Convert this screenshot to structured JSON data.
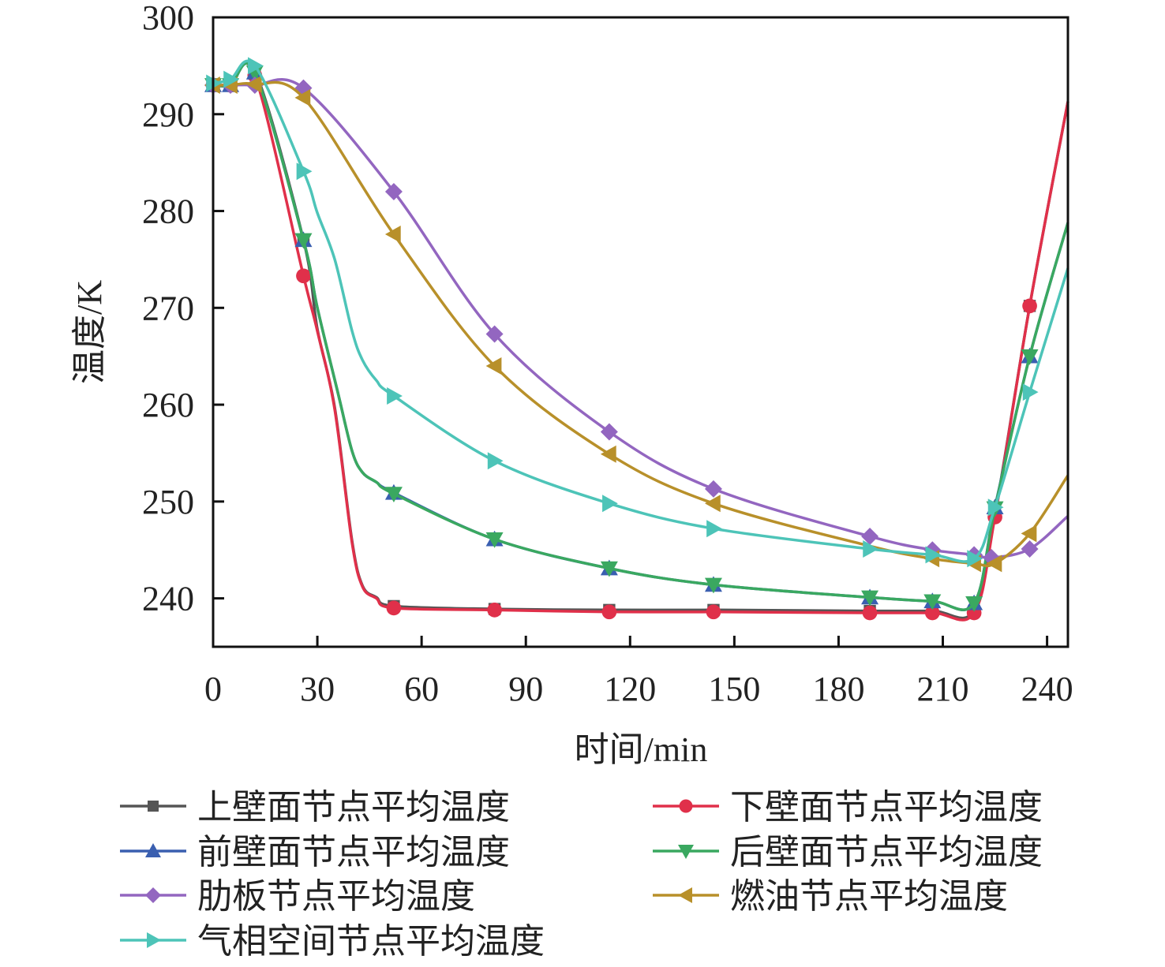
{
  "chart_data": {
    "type": "line",
    "title": "",
    "xlabel": "时间/min",
    "ylabel": "温度/K",
    "xlim": [
      0,
      246
    ],
    "ylim": [
      235,
      300
    ],
    "xticks": [
      0,
      30,
      60,
      90,
      120,
      150,
      180,
      210,
      240
    ],
    "yticks": [
      240,
      250,
      260,
      270,
      280,
      290,
      300
    ],
    "grid": false,
    "legend_position": "bottom",
    "series": [
      {
        "name": "上壁面节点平均温度",
        "color": "#555555",
        "marker": "square",
        "points": [
          [
            0,
            293,
            1
          ],
          [
            5,
            293,
            1
          ],
          [
            12,
            294.5,
            1
          ],
          [
            26,
            277,
            1
          ],
          [
            30,
            267.8,
            0
          ],
          [
            35,
            259.7,
            0
          ],
          [
            40,
            245.9,
            0
          ],
          [
            43,
            241.3,
            0
          ],
          [
            47,
            240.1,
            0
          ],
          [
            52,
            239.2,
            1
          ],
          [
            81,
            238.9,
            1
          ],
          [
            114,
            238.8,
            1
          ],
          [
            144,
            238.8,
            1
          ],
          [
            189,
            238.7,
            1
          ],
          [
            207,
            238.7,
            1
          ],
          [
            219,
            238.7,
            1
          ],
          [
            225,
            248.6,
            1
          ],
          [
            235,
            270.2,
            1
          ],
          [
            246,
            291.3,
            0
          ]
        ]
      },
      {
        "name": "下壁面节点平均温度",
        "color": "#e0304a",
        "marker": "circle",
        "points": [
          [
            0,
            293,
            1
          ],
          [
            5,
            293,
            1
          ],
          [
            12,
            294,
            1
          ],
          [
            26,
            273.3,
            1
          ],
          [
            30,
            267.6,
            0
          ],
          [
            35,
            259.5,
            0
          ],
          [
            40,
            245.7,
            0
          ],
          [
            43,
            241.2,
            0
          ],
          [
            47,
            240,
            0
          ],
          [
            52,
            239,
            1
          ],
          [
            81,
            238.8,
            1
          ],
          [
            114,
            238.6,
            1
          ],
          [
            144,
            238.6,
            1
          ],
          [
            189,
            238.5,
            1
          ],
          [
            207,
            238.5,
            1
          ],
          [
            219,
            238.5,
            1
          ],
          [
            225,
            248.4,
            1
          ],
          [
            235,
            270.2,
            1
          ],
          [
            246,
            291.3,
            0
          ]
        ]
      },
      {
        "name": "前壁面节点平均温度",
        "color": "#3a5fb0",
        "marker": "triangle-up",
        "points": [
          [
            0,
            293,
            1
          ],
          [
            5,
            293,
            1
          ],
          [
            12,
            294.3,
            1
          ],
          [
            26,
            277,
            1
          ],
          [
            30,
            270,
            0
          ],
          [
            36,
            261.1,
            0
          ],
          [
            40,
            255.2,
            0
          ],
          [
            43,
            253,
            0
          ],
          [
            47,
            252,
            0
          ],
          [
            52,
            250.9,
            1
          ],
          [
            81,
            246.1,
            1
          ],
          [
            114,
            243.1,
            1
          ],
          [
            144,
            241.4,
            1
          ],
          [
            189,
            240.1,
            1
          ],
          [
            207,
            239.7,
            1
          ],
          [
            219,
            239.5,
            1
          ],
          [
            225,
            249.4,
            1
          ],
          [
            235,
            265,
            1
          ],
          [
            246,
            278.8,
            0
          ]
        ]
      },
      {
        "name": "后壁面节点平均温度",
        "color": "#3aa860",
        "marker": "triangle-down",
        "points": [
          [
            0,
            293,
            1
          ],
          [
            5,
            293,
            1
          ],
          [
            12,
            294.3,
            1
          ],
          [
            26,
            277,
            1
          ],
          [
            30,
            270,
            0
          ],
          [
            36,
            261.1,
            0
          ],
          [
            40,
            255.2,
            0
          ],
          [
            43,
            253,
            0
          ],
          [
            47,
            252,
            0
          ],
          [
            52,
            250.8,
            1
          ],
          [
            81,
            246.1,
            1
          ],
          [
            114,
            243.1,
            1
          ],
          [
            144,
            241.4,
            1
          ],
          [
            189,
            240.1,
            1
          ],
          [
            207,
            239.7,
            1
          ],
          [
            219,
            239.5,
            1
          ],
          [
            225,
            249.3,
            1
          ],
          [
            235,
            265,
            1
          ],
          [
            246,
            278.8,
            0
          ]
        ]
      },
      {
        "name": "肋板节点平均温度",
        "color": "#9366c0",
        "marker": "diamond",
        "points": [
          [
            0,
            293,
            1
          ],
          [
            5,
            293,
            1
          ],
          [
            12,
            293,
            1
          ],
          [
            26,
            292.7,
            1
          ],
          [
            52,
            282,
            1
          ],
          [
            81,
            267.3,
            1
          ],
          [
            114,
            257.2,
            1
          ],
          [
            144,
            251.3,
            1
          ],
          [
            189,
            246.4,
            1
          ],
          [
            207,
            245,
            1
          ],
          [
            219,
            244.5,
            1
          ],
          [
            224,
            244.2,
            1
          ],
          [
            235,
            245.1,
            1
          ],
          [
            246,
            248.5,
            0
          ]
        ]
      },
      {
        "name": "燃油节点平均温度",
        "color": "#b8902a",
        "marker": "triangle-left",
        "points": [
          [
            0,
            293,
            1
          ],
          [
            5,
            293,
            1
          ],
          [
            12,
            293.1,
            1
          ],
          [
            26,
            291.7,
            1
          ],
          [
            52,
            277.6,
            1
          ],
          [
            81,
            264,
            1
          ],
          [
            114,
            254.9,
            1
          ],
          [
            144,
            249.8,
            1
          ],
          [
            189,
            245.4,
            0
          ],
          [
            207,
            244.1,
            1
          ],
          [
            219,
            243.6,
            1
          ],
          [
            225,
            243.6,
            1
          ],
          [
            235,
            246.7,
            1
          ],
          [
            246,
            252.7,
            0
          ]
        ]
      },
      {
        "name": "气相空间节点平均温度",
        "color": "#4dc4b8",
        "marker": "triangle-right",
        "points": [
          [
            0,
            293.2,
            1
          ],
          [
            5,
            293.6,
            1
          ],
          [
            12,
            295,
            1
          ],
          [
            26,
            284.1,
            1
          ],
          [
            30,
            279.8,
            0
          ],
          [
            35,
            275,
            0
          ],
          [
            40,
            267.6,
            0
          ],
          [
            43,
            264.6,
            0
          ],
          [
            47,
            262.5,
            0
          ],
          [
            52,
            260.9,
            1
          ],
          [
            81,
            254.2,
            1
          ],
          [
            114,
            249.8,
            1
          ],
          [
            144,
            247.2,
            1
          ],
          [
            189,
            245.1,
            1
          ],
          [
            207,
            244.5,
            1
          ],
          [
            219,
            244.1,
            1
          ],
          [
            225,
            249.4,
            1
          ],
          [
            235,
            261.3,
            1
          ],
          [
            246,
            274.1,
            0
          ]
        ]
      }
    ]
  }
}
